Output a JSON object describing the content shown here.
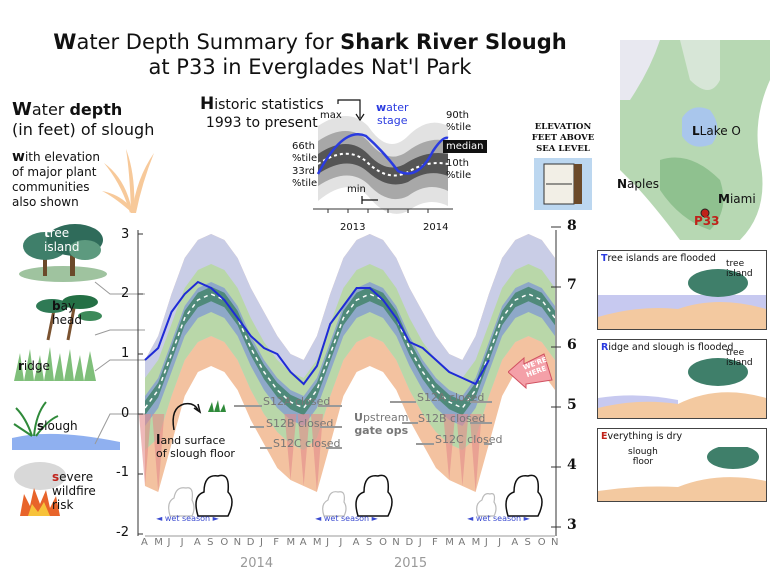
{
  "title": {
    "part1_lead": "W",
    "part1_rest": "ater Depth Summary for ",
    "part1_bold": "Shark River Slough",
    "line2": "at P33 in Everglades Nat'l Park"
  },
  "left_heading": {
    "line1_lead": "W",
    "line1_rest": "ater ",
    "line1_bold": "depth",
    "line2": "(in feet) of slough"
  },
  "left_sub": {
    "lead": "w",
    "line1": "ith elevation",
    "line2": "of major plant",
    "line3": "communities",
    "line4": "also shown"
  },
  "communities": [
    {
      "lead": "t",
      "rest": "ree",
      "line2": "island"
    },
    {
      "lead": "b",
      "rest": "ay",
      "line2": "head"
    },
    {
      "lead": "r",
      "rest": "idge",
      "line2": ""
    },
    {
      "lead": "s",
      "rest": "lough",
      "line2": ""
    },
    {
      "lead": "s",
      "rest": "evere",
      "line2": "wildfire",
      "line3": "risk"
    }
  ],
  "historic": {
    "heading_lead": "H",
    "heading_rest": "istoric statistics",
    "period": "1993 to present",
    "max": "max",
    "min": "min",
    "water_stage_lead": "w",
    "water_stage_rest": "ater",
    "water_stage_line2": "stage",
    "p90a": "90th",
    "p90b": "%tile",
    "p66a": "66th",
    "p66b": "%tile",
    "p33a": "33rd",
    "p33b": "%tile",
    "median": "median",
    "p10a": "10th",
    "p10b": "%tile",
    "year1": "2013",
    "year2": "2014"
  },
  "elevation_heading": {
    "line1": "ELEVATION",
    "line2": "FEET ABOVE",
    "line3": "SEA LEVEL"
  },
  "map": {
    "lake": "Lake O",
    "lake_lead": "L",
    "naples_lead": "N",
    "naples": "aples",
    "miami_lead": "M",
    "miami": "iami",
    "station": "P33"
  },
  "panels": [
    {
      "lead": "T",
      "rest": "ree islands are flooded",
      "label1": "tree",
      "label2": "island"
    },
    {
      "lead": "R",
      "rest": "idge and slough is flooded",
      "label1": "tree",
      "label2": "island"
    },
    {
      "lead": "E",
      "rest": "verything is dry",
      "label1": "slough",
      "label2": "floor"
    }
  ],
  "annotations": {
    "land_lead": "l",
    "land_rest": "and surface",
    "land_line2": "of slough floor",
    "s12a_1": "S12A closed",
    "s12b_1": "S12B closed",
    "s12c_1": "S12C closed",
    "s12a_2": "S12A closed",
    "s12b_2": "S12B closed",
    "s12c_2": "S12C closed",
    "gate_lead": "U",
    "gate_rest": "pstream",
    "gate_line2": "gate ops",
    "wet1": "wet season",
    "wet2": "wet season",
    "wet3": "wet season",
    "you_are_here": "WE'RE HERE"
  },
  "chart_data": {
    "type": "area",
    "title": "Water Depth Summary for Shark River Slough at P33 in Everglades Nat'l Park",
    "ylabel": "Water depth (in feet) of slough",
    "ylabel_right": "ELEVATION FEET ABOVE SEA LEVEL",
    "ylim": [
      -2,
      3.5
    ],
    "yticks_left": [
      "3",
      "2",
      "1",
      "0",
      "-1",
      "-2"
    ],
    "yticks_right": [
      "8",
      "7",
      "6",
      "5",
      "4",
      "3"
    ],
    "months": [
      "A",
      "M",
      "J",
      "J",
      "A",
      "S",
      "O",
      "N",
      "D",
      "J",
      "F",
      "M",
      "A",
      "M",
      "J",
      "J",
      "A",
      "S",
      "O",
      "N",
      "D",
      "J",
      "F",
      "M",
      "A",
      "M",
      "J",
      "J",
      "A",
      "S",
      "O",
      "N"
    ],
    "years": [
      "2014",
      "2015"
    ],
    "x_dates": [
      "2013-04",
      "2013-05",
      "2013-06",
      "2013-07",
      "2013-08",
      "2013-09",
      "2013-10",
      "2013-11",
      "2013-12",
      "2014-01",
      "2014-02",
      "2014-03",
      "2014-04",
      "2014-05",
      "2014-06",
      "2014-07",
      "2014-08",
      "2014-09",
      "2014-10",
      "2014-11",
      "2014-12",
      "2015-01",
      "2015-02",
      "2015-03",
      "2015-04",
      "2015-05",
      "2015-06",
      "2015-07",
      "2015-08",
      "2015-09",
      "2015-10",
      "2015-11"
    ],
    "series": [
      {
        "name": "max",
        "values": [
          0.9,
          1.3,
          2.0,
          2.6,
          2.9,
          3.0,
          2.9,
          2.6,
          2.1,
          1.7,
          1.3,
          1.0,
          0.9,
          1.3,
          2.0,
          2.6,
          2.9,
          3.0,
          2.9,
          2.6,
          2.1,
          1.7,
          1.3,
          1.0,
          0.9,
          1.3,
          2.0,
          2.6,
          2.9,
          3.0,
          2.9,
          2.6
        ]
      },
      {
        "name": "90th %tile",
        "values": [
          0.6,
          0.9,
          1.5,
          2.1,
          2.4,
          2.5,
          2.4,
          2.1,
          1.6,
          1.2,
          0.9,
          0.7,
          0.6,
          0.9,
          1.5,
          2.1,
          2.4,
          2.5,
          2.4,
          2.1,
          1.6,
          1.2,
          0.9,
          0.7,
          0.6,
          0.9,
          1.5,
          2.1,
          2.4,
          2.5,
          2.4,
          2.1
        ]
      },
      {
        "name": "66th %tile",
        "values": [
          0.3,
          0.6,
          1.2,
          1.8,
          2.1,
          2.2,
          2.1,
          1.8,
          1.3,
          0.9,
          0.6,
          0.4,
          0.3,
          0.6,
          1.2,
          1.8,
          2.1,
          2.2,
          2.1,
          1.8,
          1.3,
          0.9,
          0.6,
          0.4,
          0.3,
          0.6,
          1.2,
          1.8,
          2.1,
          2.2,
          2.1,
          1.8
        ]
      },
      {
        "name": "median",
        "values": [
          0.1,
          0.4,
          1.0,
          1.6,
          1.9,
          2.0,
          1.9,
          1.6,
          1.1,
          0.7,
          0.4,
          0.2,
          0.1,
          0.4,
          1.0,
          1.6,
          1.9,
          2.0,
          1.9,
          1.6,
          1.1,
          0.7,
          0.4,
          0.2,
          0.1,
          0.4,
          1.0,
          1.6,
          1.9,
          2.0,
          1.9,
          1.6
        ]
      },
      {
        "name": "33rd %tile",
        "values": [
          -0.2,
          0.1,
          0.7,
          1.3,
          1.6,
          1.7,
          1.6,
          1.3,
          0.8,
          0.4,
          0.1,
          -0.1,
          -0.2,
          0.1,
          0.7,
          1.3,
          1.6,
          1.7,
          1.6,
          1.3,
          0.8,
          0.4,
          0.1,
          -0.1,
          -0.2,
          0.1,
          0.7,
          1.3,
          1.6,
          1.7,
          1.6,
          1.3
        ]
      },
      {
        "name": "10th %tile",
        "values": [
          -0.6,
          -0.4,
          0.3,
          0.9,
          1.2,
          1.3,
          1.2,
          0.9,
          0.4,
          0.0,
          -0.3,
          -0.5,
          -0.6,
          -0.4,
          0.3,
          0.9,
          1.2,
          1.3,
          1.2,
          0.9,
          0.4,
          0.0,
          -0.3,
          -0.5,
          -0.6,
          -0.4,
          0.3,
          0.9,
          1.2,
          1.3,
          1.2,
          0.9
        ]
      },
      {
        "name": "min",
        "values": [
          -1.2,
          -1.3,
          -0.5,
          0.3,
          0.7,
          0.8,
          0.7,
          0.4,
          -0.1,
          -0.5,
          -0.9,
          -1.1,
          -1.2,
          -1.3,
          -0.5,
          0.3,
          0.7,
          0.8,
          0.7,
          0.4,
          -0.1,
          -0.5,
          -0.9,
          -1.1,
          -1.2,
          -1.3,
          -0.5,
          0.3,
          0.7,
          0.8,
          0.7,
          0.4
        ]
      },
      {
        "name": "water stage",
        "values": [
          0.9,
          1.1,
          1.7,
          2.0,
          2.2,
          2.1,
          1.9,
          1.6,
          1.3,
          1.1,
          1.0,
          0.7,
          0.5,
          0.8,
          1.5,
          1.8,
          2.1,
          2.1,
          1.9,
          1.6,
          1.2,
          1.1,
          0.9,
          0.7,
          0.6,
          0.5,
          0.9,
          null,
          null,
          null,
          null,
          null
        ]
      }
    ],
    "reference_levels": [
      {
        "label": "tree island",
        "value": 2.0
      },
      {
        "label": "bay head",
        "value": 1.4
      },
      {
        "label": "ridge",
        "value": 0.9
      },
      {
        "label": "slough",
        "value": 0.0
      }
    ],
    "colors": {
      "water_stage": "#1f2bd6",
      "band_outer": "#c9cde6",
      "band_mid": "#8ea8c8",
      "band_inner": "#4f8a7a",
      "dry_band": "#f3c2a0",
      "min_spike": "#e38b8b"
    }
  }
}
